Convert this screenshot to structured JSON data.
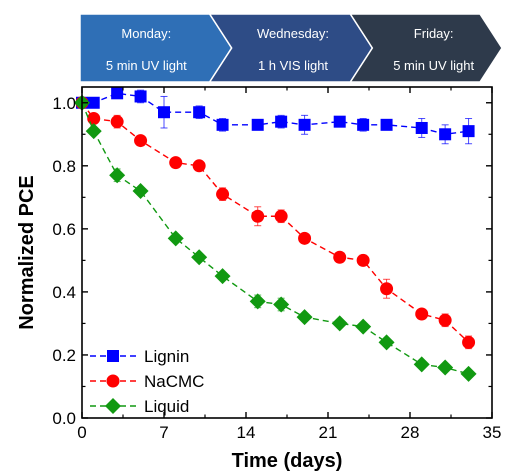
{
  "banner": [
    {
      "day": "Monday:",
      "treatment": "5 min  UV light",
      "color": "#2F6FB6"
    },
    {
      "day": "Wednesday:",
      "treatment": "1 h VIS light",
      "color": "#2E4C86"
    },
    {
      "day": "Friday:",
      "treatment": "5 min UV light",
      "color": "#2E3A4B"
    }
  ],
  "chart_data": {
    "type": "line",
    "xlabel": "Time (days)",
    "ylabel": "Normalized PCE",
    "xlim": [
      0,
      35
    ],
    "ylim": [
      0.0,
      1.05
    ],
    "xticks": [
      0,
      7,
      14,
      21,
      28,
      35
    ],
    "yticks": [
      0.0,
      0.2,
      0.4,
      0.6,
      0.8,
      1.0
    ],
    "xtick_labels": [
      "0",
      "7",
      "14",
      "21",
      "28",
      "35"
    ],
    "ytick_labels": [
      "0.0",
      "0.2",
      "0.4",
      "0.6",
      "0.8",
      "1.0"
    ],
    "grid": false,
    "legend_position": "bottom-left",
    "series": [
      {
        "name": "Lignin",
        "color": "#0000FF",
        "marker": "square",
        "x": [
          0,
          1,
          3,
          5,
          7,
          10,
          12,
          15,
          17,
          19,
          22,
          24,
          26,
          29,
          31,
          33
        ],
        "y": [
          1.0,
          1.0,
          1.03,
          1.02,
          0.97,
          0.97,
          0.93,
          0.93,
          0.94,
          0.93,
          0.94,
          0.93,
          0.93,
          0.92,
          0.9,
          0.91
        ],
        "err": [
          0.0,
          0.01,
          0.01,
          0.02,
          0.05,
          0.02,
          0.02,
          0.015,
          0.02,
          0.03,
          0.015,
          0.02,
          0.015,
          0.03,
          0.03,
          0.04
        ]
      },
      {
        "name": "NaCMC",
        "color": "#FF0000",
        "marker": "circle",
        "x": [
          0,
          1,
          3,
          5,
          8,
          10,
          12,
          15,
          17,
          19,
          22,
          24,
          26,
          29,
          31,
          33
        ],
        "y": [
          1.0,
          0.95,
          0.94,
          0.88,
          0.81,
          0.8,
          0.71,
          0.64,
          0.64,
          0.57,
          0.51,
          0.5,
          0.41,
          0.33,
          0.31,
          0.24
        ],
        "err": [
          0.0,
          0.01,
          0.02,
          0.01,
          0.01,
          0.01,
          0.02,
          0.03,
          0.02,
          0.01,
          0.01,
          0.01,
          0.03,
          0.01,
          0.02,
          0.02
        ]
      },
      {
        "name": "Liquid",
        "color": "#119911",
        "marker": "diamond",
        "x": [
          0,
          1,
          3,
          5,
          8,
          10,
          12,
          15,
          17,
          19,
          22,
          24,
          26,
          29,
          31,
          33
        ],
        "y": [
          1.0,
          0.91,
          0.77,
          0.72,
          0.57,
          0.51,
          0.45,
          0.37,
          0.36,
          0.32,
          0.3,
          0.29,
          0.24,
          0.17,
          0.16,
          0.14
        ],
        "err": [
          0.0,
          0.01,
          0.02,
          0.01,
          0.01,
          0.01,
          0.01,
          0.02,
          0.02,
          0.01,
          0.01,
          0.01,
          0.01,
          0.01,
          0.01,
          0.01
        ]
      }
    ]
  }
}
